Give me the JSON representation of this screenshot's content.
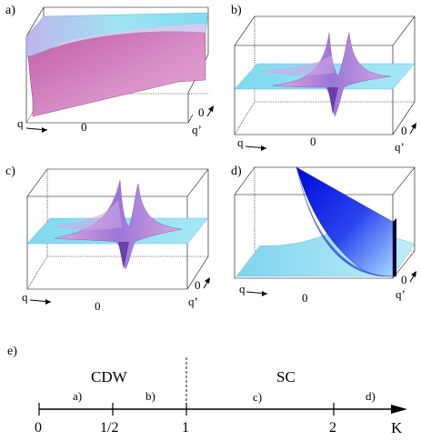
{
  "panels": [
    {
      "id": "a",
      "label": "a)",
      "q": "q",
      "q_prime": "q’",
      "origin": "0",
      "origin_right": "0"
    },
    {
      "id": "b",
      "label": "b)",
      "q": "q",
      "q_prime": "q’",
      "origin": "0",
      "origin_right": "0"
    },
    {
      "id": "c",
      "label": "c)",
      "q": "q",
      "q_prime": "q’",
      "origin": "0",
      "origin_right": "0"
    },
    {
      "id": "d",
      "label": "d)",
      "q": "q",
      "q_prime": "q’",
      "origin": "0",
      "origin_right": "0"
    }
  ],
  "phase_diagram": {
    "label": "e)",
    "left_phase": "CDW",
    "right_phase": "SC",
    "region_labels": [
      "a)",
      "b)",
      "c)",
      "d)"
    ],
    "ticks": [
      "0",
      "1/2",
      "1",
      "2"
    ],
    "axis_label": "K"
  },
  "colors": {
    "surface_light": "#8fe0f0",
    "surface_pink": "#d070b0",
    "surface_violet": "#b48ae6",
    "surface_blue_dark": "#0010e0"
  }
}
